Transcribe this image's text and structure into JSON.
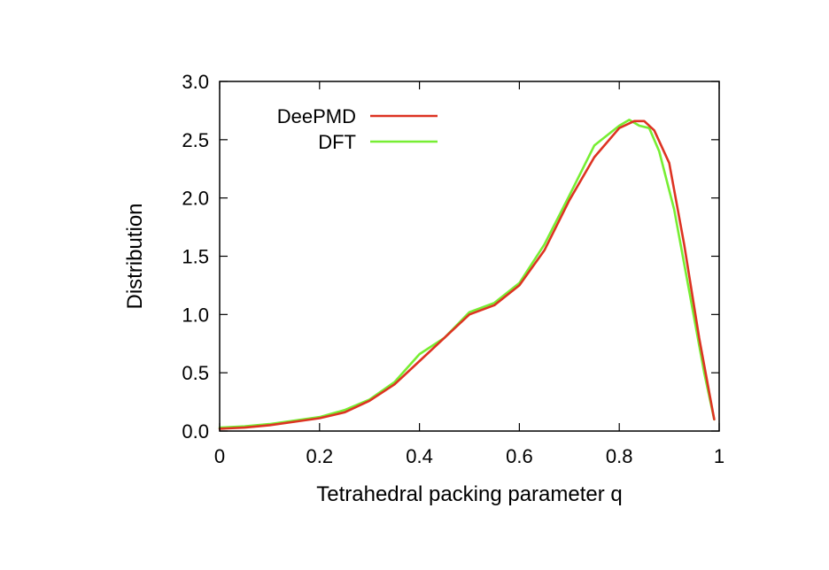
{
  "chart_data": {
    "type": "line",
    "xlabel": "Tetrahedral packing parameter q",
    "ylabel": "Distribution",
    "xlim": [
      0,
      1
    ],
    "ylim": [
      0,
      3
    ],
    "x_ticks": [
      "0",
      "0.2",
      "0.4",
      "0.6",
      "0.8",
      "1"
    ],
    "y_ticks": [
      "0.0",
      "0.5",
      "1.0",
      "1.5",
      "2.0",
      "2.5",
      "3.0"
    ],
    "grid": false,
    "legend_position": "top-left",
    "series": [
      {
        "name": "DeePMD",
        "color": "#dd3322",
        "x": [
          0.0,
          0.05,
          0.1,
          0.15,
          0.2,
          0.25,
          0.3,
          0.35,
          0.4,
          0.45,
          0.5,
          0.55,
          0.6,
          0.65,
          0.7,
          0.75,
          0.8,
          0.83,
          0.85,
          0.87,
          0.9,
          0.93,
          0.96,
          0.99
        ],
        "values": [
          0.02,
          0.03,
          0.05,
          0.08,
          0.11,
          0.16,
          0.26,
          0.4,
          0.6,
          0.8,
          1.0,
          1.08,
          1.25,
          1.55,
          1.98,
          2.35,
          2.6,
          2.66,
          2.66,
          2.58,
          2.3,
          1.6,
          0.8,
          0.1
        ]
      },
      {
        "name": "DFT",
        "color": "#77ee33",
        "x": [
          0.0,
          0.05,
          0.1,
          0.15,
          0.2,
          0.25,
          0.3,
          0.35,
          0.4,
          0.45,
          0.5,
          0.55,
          0.6,
          0.65,
          0.7,
          0.75,
          0.8,
          0.82,
          0.84,
          0.86,
          0.88,
          0.91,
          0.94,
          0.97,
          0.99
        ],
        "values": [
          0.03,
          0.04,
          0.06,
          0.09,
          0.12,
          0.18,
          0.27,
          0.42,
          0.66,
          0.8,
          1.02,
          1.1,
          1.27,
          1.6,
          2.02,
          2.45,
          2.62,
          2.67,
          2.62,
          2.6,
          2.4,
          1.9,
          1.2,
          0.5,
          0.1
        ]
      }
    ]
  }
}
